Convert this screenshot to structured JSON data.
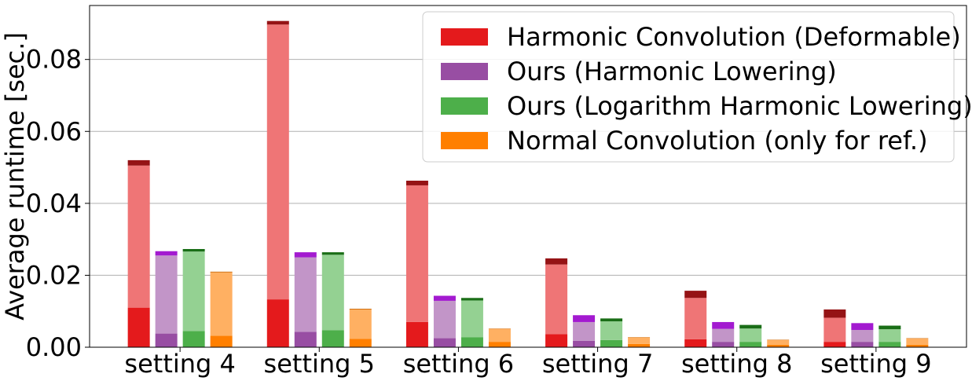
{
  "chart_data": {
    "type": "bar",
    "stacked": true,
    "title": "",
    "xlabel": "",
    "ylabel": "Average runtime [sec.]",
    "ylim": [
      0,
      0.095
    ],
    "yticks": [
      0.0,
      0.02,
      0.04,
      0.06,
      0.08
    ],
    "ytick_labels": [
      "0.00",
      "0.02",
      "0.04",
      "0.06",
      "0.08"
    ],
    "grid": "horizontal",
    "legend_position": "top-right",
    "categories": [
      "setting 4",
      "setting 5",
      "setting 6",
      "setting 7",
      "setting 8",
      "setting 9"
    ],
    "series": [
      {
        "name": "Harmonic Convolution (Deformable)",
        "colors": [
          "#e41a1c",
          "#ef7576",
          "#951315"
        ],
        "segments": [
          [
            0.011,
            0.0395,
            0.0015
          ],
          [
            0.0133,
            0.0764,
            0.001
          ],
          [
            0.007,
            0.038,
            0.0013
          ],
          [
            0.0036,
            0.0194,
            0.0017
          ],
          [
            0.0022,
            0.0115,
            0.002
          ],
          [
            0.0015,
            0.0067,
            0.0023
          ]
        ]
      },
      {
        "name": "Ours (Harmonic Lowering)",
        "colors": [
          "#984ea3",
          "#c295c8",
          "#a31ad0"
        ],
        "segments": [
          [
            0.0038,
            0.0217,
            0.0012
          ],
          [
            0.0043,
            0.0207,
            0.0014
          ],
          [
            0.0025,
            0.0104,
            0.0014
          ],
          [
            0.0018,
            0.0052,
            0.0019
          ],
          [
            0.0015,
            0.0036,
            0.0019
          ],
          [
            0.0015,
            0.0033,
            0.0019
          ]
        ]
      },
      {
        "name": "Ours (Logarithm Harmonic Lowering)",
        "colors": [
          "#4daf4a",
          "#94d192",
          "#1a6e17"
        ],
        "segments": [
          [
            0.0045,
            0.0221,
            0.0007
          ],
          [
            0.0047,
            0.021,
            0.0007
          ],
          [
            0.0028,
            0.0102,
            0.0007
          ],
          [
            0.002,
            0.0052,
            0.0008
          ],
          [
            0.0015,
            0.0037,
            0.001
          ],
          [
            0.0015,
            0.0035,
            0.001
          ]
        ]
      },
      {
        "name": "Normal Convolution (only for ref.)",
        "colors": [
          "#ff7f00",
          "#ffb062",
          "#cc6600"
        ],
        "segments": [
          [
            0.0032,
            0.0176,
            0.0002
          ],
          [
            0.0023,
            0.0082,
            0.0002
          ],
          [
            0.0015,
            0.0036,
            0.0001
          ],
          [
            0.0009,
            0.0018,
            0.0001
          ],
          [
            0.0007,
            0.0013,
            0.0001
          ],
          [
            0.0007,
            0.0017,
            0.0001
          ]
        ]
      }
    ]
  }
}
